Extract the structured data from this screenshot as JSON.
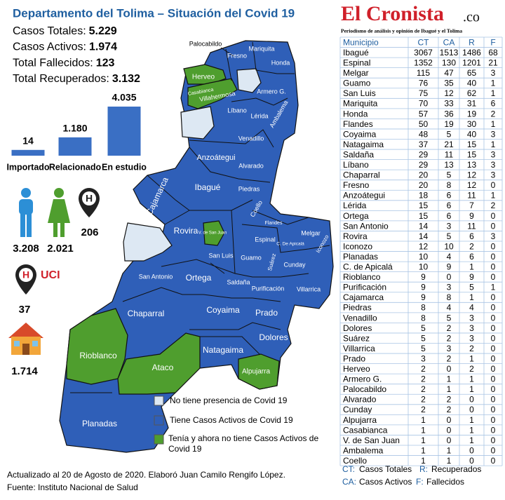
{
  "header": {
    "title": "Departamento del Tolima – Situación del Covid 19",
    "stats": [
      {
        "label": "Casos Totales:",
        "value": "5.229"
      },
      {
        "label": "Casos Activos:",
        "value": "1.974"
      },
      {
        "label": "Total Fallecidos:",
        "value": "123"
      },
      {
        "label": "Total Recuperados:",
        "value": "3.132"
      }
    ]
  },
  "chart_data": {
    "type": "bar",
    "categories": [
      "Importado",
      "Relacionado",
      "En estudio"
    ],
    "values": [
      14,
      1180,
      4035
    ],
    "value_labels": [
      "14",
      "1.180",
      "4.035"
    ],
    "color": "#3a6fc4"
  },
  "icons": {
    "men": "3.208",
    "women": "2.021",
    "hospital": "206",
    "uci_label": "UCI",
    "uci": "37",
    "home": "1.714"
  },
  "map": {
    "regions": [
      "Palocabildo",
      "Fresno",
      "Mariquita",
      "Honda",
      "Herveo",
      "Casabianca",
      "Villahermosa",
      "Armero G.",
      "Líbano",
      "Lérida",
      "Ambalema",
      "Venadillo",
      "Anzoátegui",
      "Alvarado",
      "Cajamarca",
      "Ibagué",
      "Piedras",
      "Coello",
      "Rovira",
      "V. de San Juan",
      "Flandes",
      "Espinal",
      "C. De Apicalá",
      "Melgar",
      "Iconozo",
      "San Luis",
      "Guamo",
      "Suárez",
      "Cunday",
      "San Antonio",
      "Ortega",
      "Saldaña",
      "Purificación",
      "Villarrica",
      "Chaparral",
      "Coyaima",
      "Prado",
      "Dolores",
      "Natagaima",
      "Rioblanco",
      "Ataco",
      "Alpujarra",
      "Planadas"
    ],
    "legend": [
      "No tiene presencia de Covid 19",
      "Tiene Casos Activos de Covid 19",
      "Tenía y ahora no tiene Casos Activos de Covid 19"
    ]
  },
  "footer": {
    "line1": "Actualizado al 20 de Agosto de 2020. Elaboró Juan Camilo Rengifo López.",
    "line2": "Fuente: Instituto Nacional de Salud"
  },
  "logo": {
    "name": "El Cronista",
    "suffix": ".co",
    "tagline": "Periodismo de análisis y opinión de Ibagué y el Tolima"
  },
  "table": {
    "columns": [
      "Municipio",
      "CT",
      "CA",
      "R",
      "F"
    ],
    "rows": [
      [
        "Ibagué",
        3067,
        1513,
        1486,
        68
      ],
      [
        "Espinal",
        1352,
        130,
        1201,
        21
      ],
      [
        "Melgar",
        115,
        47,
        65,
        3
      ],
      [
        "Guamo",
        76,
        35,
        40,
        1
      ],
      [
        "San Luis",
        75,
        12,
        62,
        1
      ],
      [
        "Mariquita",
        70,
        33,
        31,
        6
      ],
      [
        "Honda",
        57,
        36,
        19,
        2
      ],
      [
        "Flandes",
        50,
        19,
        30,
        1
      ],
      [
        "Coyaima",
        48,
        5,
        40,
        3
      ],
      [
        "Natagaima",
        37,
        21,
        15,
        1
      ],
      [
        "Saldaña",
        29,
        11,
        15,
        3
      ],
      [
        "Líbano",
        29,
        13,
        13,
        3
      ],
      [
        "Chaparral",
        20,
        5,
        12,
        3
      ],
      [
        "Fresno",
        20,
        8,
        12,
        0
      ],
      [
        "Anzoátegui",
        18,
        6,
        11,
        1
      ],
      [
        "Lérida",
        15,
        6,
        7,
        2
      ],
      [
        "Ortega",
        15,
        6,
        9,
        0
      ],
      [
        "San Antonio",
        14,
        3,
        11,
        0
      ],
      [
        "Rovira",
        14,
        5,
        6,
        3
      ],
      [
        "Iconozo",
        12,
        10,
        2,
        0
      ],
      [
        "Planadas",
        10,
        4,
        6,
        0
      ],
      [
        "C. de Apicalá",
        10,
        9,
        1,
        0
      ],
      [
        "Rioblanco",
        9,
        0,
        9,
        0
      ],
      [
        "Purificación",
        9,
        3,
        5,
        1
      ],
      [
        "Cajamarca",
        9,
        8,
        1,
        0
      ],
      [
        "Piedras",
        8,
        4,
        4,
        0
      ],
      [
        "Venadillo",
        8,
        5,
        3,
        0
      ],
      [
        "Dolores",
        5,
        2,
        3,
        0
      ],
      [
        "Suárez",
        5,
        2,
        3,
        0
      ],
      [
        "Villarrica",
        5,
        3,
        2,
        0
      ],
      [
        "Prado",
        3,
        2,
        1,
        0
      ],
      [
        "Herveo",
        2,
        0,
        2,
        0
      ],
      [
        "Armero G.",
        2,
        1,
        1,
        0
      ],
      [
        "Palocabildo",
        2,
        1,
        1,
        0
      ],
      [
        "Alvarado",
        2,
        2,
        0,
        0
      ],
      [
        "Cunday",
        2,
        2,
        0,
        0
      ],
      [
        "Alpujarra",
        1,
        0,
        1,
        0
      ],
      [
        "Casabianca",
        1,
        0,
        1,
        0
      ],
      [
        "V. de San Juan",
        1,
        0,
        1,
        0
      ],
      [
        "Ambalema",
        1,
        1,
        0,
        0
      ],
      [
        "Coello",
        1,
        1,
        0,
        0
      ]
    ]
  },
  "key": [
    {
      "abbr": "CT:",
      "label": "Casos Totales"
    },
    {
      "abbr": "R:",
      "label": "Recuperados"
    },
    {
      "abbr": "CA:",
      "label": "Casos Activos"
    },
    {
      "abbr": "F:",
      "label": "Fallecidos"
    }
  ]
}
